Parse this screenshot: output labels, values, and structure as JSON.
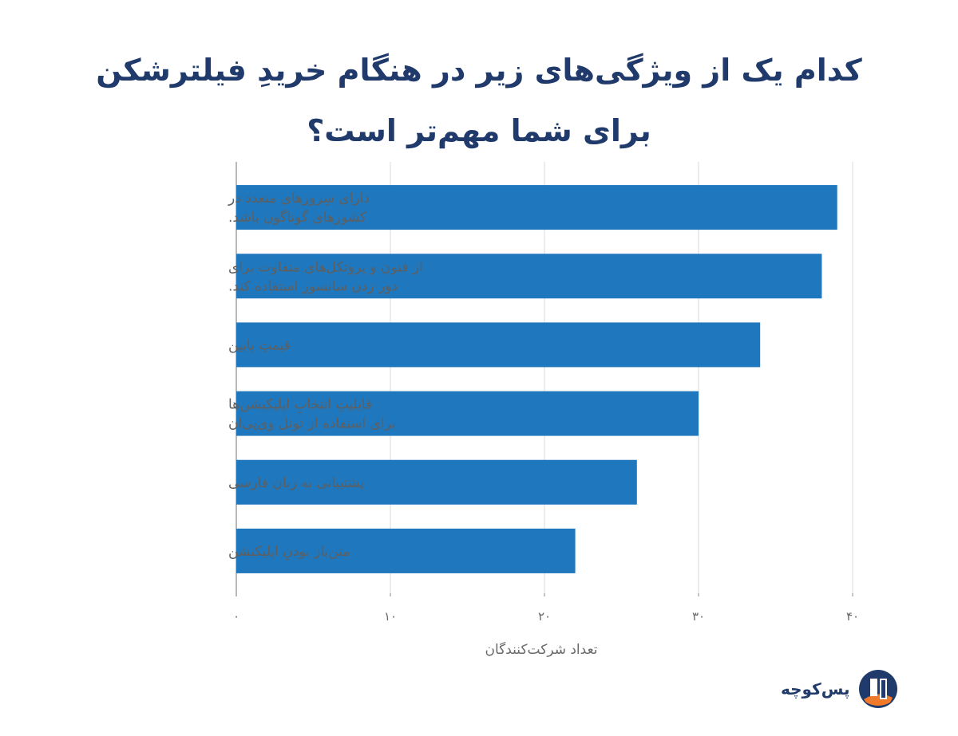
{
  "title": "کدام یک از ویژگی‌های زیر در هنگام خریدِ فیلترشکن برای شما مهم‌تر است؟",
  "brand": {
    "name": "پس‌کوچه",
    "logo_icon": "paskoocheh-logo-icon"
  },
  "colors": {
    "bar": "#1f77bd",
    "grid": "#d9d9d9",
    "axis": "#888888",
    "title": "#1f3a6b"
  },
  "chart_data": {
    "type": "bar",
    "orientation": "horizontal",
    "categories": [
      [
        "دارای سِرورهای متعدد در",
        "کشورهای گوناگون باشد."
      ],
      [
        "از فنون و پروتکل‌های متفاوت برای",
        "دور زدن سانسور استفاده کند."
      ],
      [
        "قیمتِ پایین"
      ],
      [
        "قابلیتِ انتخابِ اپلیکیشن‌ها",
        "برای استفاده از تونل وی‌پی‌ان"
      ],
      [
        "پشتیبانی به زبان فارسی"
      ],
      [
        "متن‌باز بودنِ اپلیکیشن"
      ]
    ],
    "values": [
      39,
      38,
      34,
      30,
      26,
      22
    ],
    "xlim": [
      0,
      40
    ],
    "xticks": [
      0,
      10,
      20,
      30,
      40
    ],
    "xtick_labels": [
      "۰",
      "۱۰",
      "۲۰",
      "۳۰",
      "۴۰"
    ],
    "xlabel": "تعداد شرکت‌کنندگان",
    "grid": true
  }
}
